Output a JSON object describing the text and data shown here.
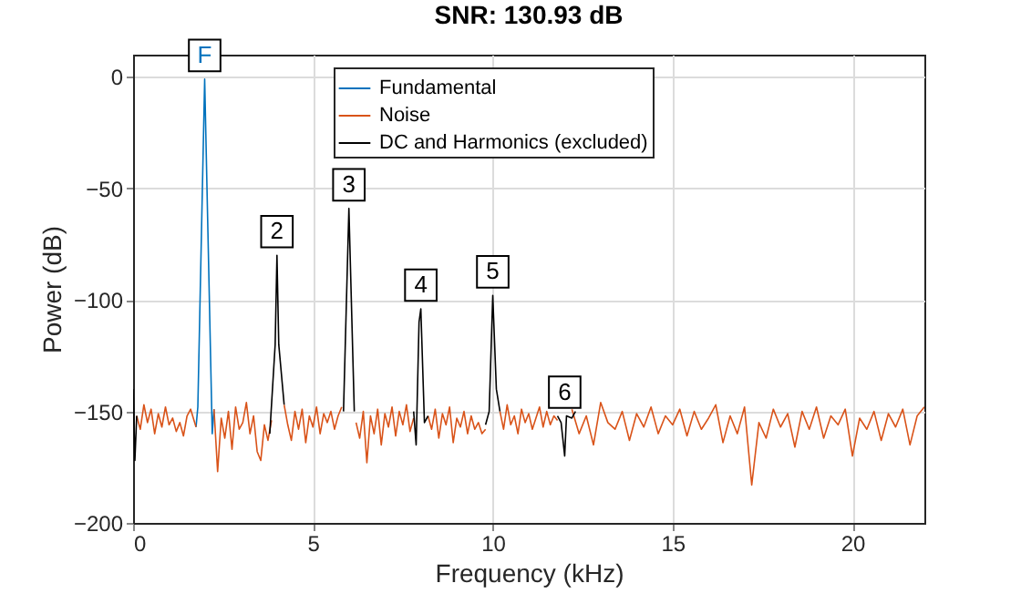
{
  "chart_data": {
    "type": "line",
    "title": "SNR: 130.93 dB",
    "xlabel": "Frequency (kHz)",
    "ylabel": "Power (dB)",
    "xlim": [
      0,
      22
    ],
    "xticks": [
      0,
      5,
      10,
      15,
      20
    ],
    "ylim": [
      -200,
      10
    ],
    "yticks": [
      -200,
      -150,
      -100,
      -50,
      0
    ],
    "grid": true,
    "legend": "top",
    "series": [
      {
        "name": "Fundamental",
        "color": "#0072bd",
        "x": [
          1.75,
          1.8,
          1.99,
          2.2,
          2.25
        ],
        "values": [
          -157,
          -148,
          -1,
          -160,
          -149
        ]
      },
      {
        "name": "Noise",
        "color": "#d95319",
        "x": [
          0.1,
          0.2,
          0.3,
          0.4,
          0.5,
          0.6,
          0.7,
          0.8,
          0.9,
          1.0,
          1.1,
          1.2,
          1.3,
          1.4,
          1.5,
          1.6,
          1.75,
          2.0,
          2.25,
          2.35,
          2.45,
          2.55,
          2.65,
          2.75,
          2.85,
          2.95,
          3.05,
          3.15,
          3.25,
          3.35,
          3.45,
          3.55,
          3.65,
          3.75,
          3.85,
          4.0,
          4.2,
          4.3,
          4.4,
          4.5,
          4.6,
          4.7,
          4.8,
          4.9,
          5.0,
          5.1,
          5.2,
          5.3,
          5.4,
          5.5,
          5.6,
          5.7,
          5.8,
          6.0,
          6.2,
          6.3,
          6.4,
          6.5,
          6.6,
          6.7,
          6.8,
          6.9,
          7.0,
          7.1,
          7.2,
          7.3,
          7.4,
          7.5,
          7.6,
          7.7,
          7.8,
          8.0,
          8.2,
          8.3,
          8.4,
          8.5,
          8.6,
          8.7,
          8.8,
          8.9,
          9.0,
          9.1,
          9.2,
          9.3,
          9.4,
          9.5,
          9.6,
          9.7,
          9.8,
          10.0,
          10.2,
          10.3,
          10.4,
          10.5,
          10.6,
          10.7,
          10.8,
          10.9,
          11.0,
          11.1,
          11.2,
          11.3,
          11.4,
          11.5,
          11.6,
          11.7,
          11.8,
          12.0,
          12.2,
          12.4,
          12.6,
          12.8,
          13.0,
          13.2,
          13.4,
          13.6,
          13.8,
          14.0,
          14.2,
          14.4,
          14.6,
          14.8,
          15.0,
          15.2,
          15.4,
          15.6,
          15.8,
          16.0,
          16.2,
          16.4,
          16.6,
          16.8,
          17.0,
          17.2,
          17.4,
          17.6,
          17.8,
          18.0,
          18.2,
          18.4,
          18.6,
          18.8,
          19.0,
          19.2,
          19.4,
          19.6,
          19.8,
          20.0,
          20.2,
          20.4,
          20.6,
          20.8,
          21.0,
          21.2,
          21.4,
          21.6,
          21.8,
          22.0
        ],
        "values": [
          -152,
          -158,
          -147,
          -155,
          -149,
          -160,
          -151,
          -157,
          -148,
          -156,
          -153,
          -159,
          -155,
          -161,
          -152,
          -149,
          -157,
          null,
          -149,
          -177,
          -153,
          -162,
          -150,
          -167,
          -148,
          -158,
          -155,
          -146,
          -160,
          -152,
          -168,
          -172,
          -156,
          -163,
          -154,
          null,
          -147,
          -156,
          -163,
          -150,
          -158,
          -149,
          -164,
          -152,
          -157,
          -148,
          -160,
          -151,
          -155,
          -150,
          -158,
          -152,
          -148,
          null,
          -155,
          -162,
          -150,
          -173,
          -152,
          -160,
          -149,
          -165,
          -151,
          -157,
          -148,
          -161,
          -150,
          -156,
          -147,
          -159,
          -153,
          null,
          -152,
          -158,
          -149,
          -162,
          -151,
          -156,
          -148,
          -164,
          -153,
          -157,
          -150,
          -160,
          -152,
          -158,
          -155,
          -160,
          -158,
          null,
          -150,
          -158,
          -147,
          -156,
          -152,
          -160,
          -149,
          -155,
          -151,
          -158,
          -153,
          -148,
          -157,
          -150,
          -156,
          -152,
          -154,
          null,
          -149,
          -160,
          -152,
          -165,
          -146,
          -155,
          -158,
          -150,
          -163,
          -151,
          -157,
          -148,
          -160,
          -152,
          -156,
          -149,
          -161,
          -150,
          -158,
          -153,
          -147,
          -164,
          -152,
          -160,
          -148,
          -183,
          -155,
          -162,
          -149,
          -157,
          -151,
          -166,
          -150,
          -158,
          -148,
          -162,
          -152,
          -156,
          -149,
          -170,
          -153,
          -158,
          -150,
          -163,
          -151,
          -157,
          -149,
          -165,
          -152,
          -148
        ]
      },
      {
        "name": "DC and Harmonics (excluded)",
        "color": "#000000",
        "x": [
          0,
          0.05,
          0.1,
          0.5,
          3.8,
          3.95,
          4.0,
          4.05,
          4.2,
          5.0,
          5.85,
          6.0,
          6.15,
          7.0,
          7.8,
          7.87,
          7.95,
          8.0,
          8.1,
          8.2,
          9.0,
          9.8,
          9.9,
          10.0,
          10.1,
          10.2,
          11.0,
          11.8,
          11.9,
          12.0,
          12.05,
          12.2,
          12.3
        ],
        "values": [
          -140,
          -172,
          -152,
          null,
          -160,
          -120,
          -80,
          -120,
          -147,
          null,
          -150,
          -59,
          -150,
          null,
          -150,
          -165,
          -110,
          -104,
          -155,
          -152,
          null,
          -156,
          -150,
          -98,
          -140,
          -150,
          null,
          -152,
          -155,
          -170,
          -152,
          -153,
          -150
        ]
      }
    ],
    "annotations": [
      {
        "text": "F",
        "x": 1.99,
        "y": -1
      },
      {
        "text": "2",
        "x": 4.0,
        "y": -80
      },
      {
        "text": "3",
        "x": 6.0,
        "y": -59
      },
      {
        "text": "4",
        "x": 8.0,
        "y": -104
      },
      {
        "text": "5",
        "x": 10.0,
        "y": -98
      },
      {
        "text": "6",
        "x": 12.0,
        "y": -152
      }
    ]
  }
}
